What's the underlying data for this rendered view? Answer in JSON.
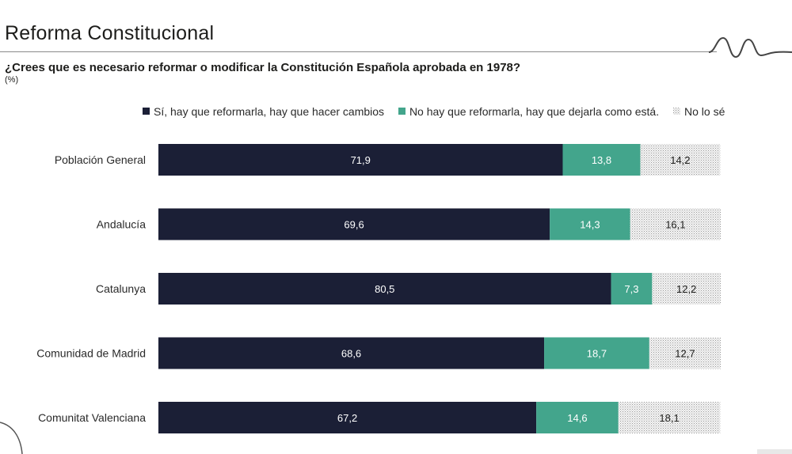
{
  "header": {
    "title": "Reforma Constitucional",
    "question": "¿Crees que es necesario reformar o modificar la Constitución Española aprobada en 1978?",
    "unit": "(%)"
  },
  "colors": {
    "si": "#1b1f36",
    "no": "#43a58c",
    "ns": "#e6e6e6",
    "text_dark_bar": "#ffffff",
    "text_light_bar": "#1d1d1b"
  },
  "chart_data": {
    "type": "bar",
    "orientation": "horizontal",
    "stacked": true,
    "categories": [
      "Población General",
      "Andalucía",
      "Catalunya",
      "Comunidad de Madrid",
      "Comunitat Valenciana"
    ],
    "series": [
      {
        "name": "Sí, hay que reformarla, hay que hacer cambios",
        "values": [
          71.9,
          69.6,
          80.5,
          68.6,
          67.2
        ],
        "labels": [
          "71,9",
          "69,6",
          "80,5",
          "68,6",
          "67,2"
        ]
      },
      {
        "name": "No hay que reformarla, hay que dejarla como está.",
        "values": [
          13.8,
          14.3,
          7.3,
          18.7,
          14.6
        ],
        "labels": [
          "13,8",
          "14,3",
          "7,3",
          "18,7",
          "14,6"
        ]
      },
      {
        "name": "No lo sé",
        "values": [
          14.2,
          16.1,
          12.2,
          12.7,
          18.1
        ],
        "labels": [
          "14,2",
          "16,1",
          "12,2",
          "12,7",
          "18,1"
        ]
      }
    ],
    "xlim": [
      0,
      100
    ],
    "legend_position": "top",
    "grid": false
  }
}
